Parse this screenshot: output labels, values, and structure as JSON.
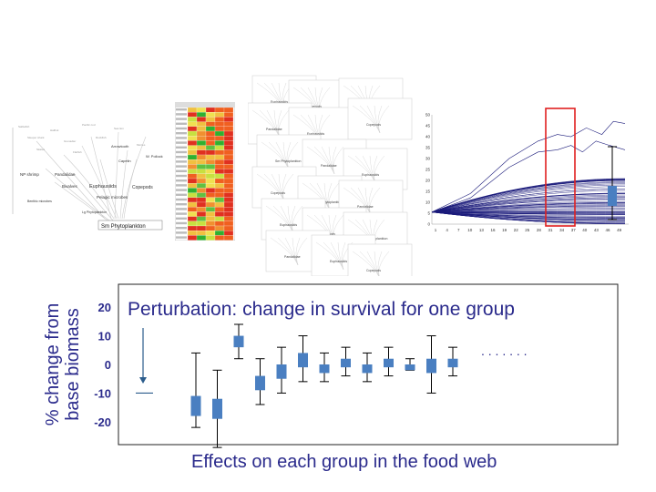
{
  "top_row": {
    "foodweb": {
      "labels": [
        "NP shrimp",
        "Pandalidae",
        "Euphausiids",
        "Copepods",
        "Bivalves",
        "Pelagic microbes",
        "Benthic microbes",
        "Lg Phytoplankton",
        "Sm Phytoplankton",
        "Arrowtooth",
        "Capelin",
        "W. Pollock"
      ]
    },
    "collage": {
      "labels": [
        "Euphausiids",
        "Copepods",
        "Sm Phytoplankton",
        "Pandalidae"
      ]
    },
    "line_chart": {
      "y_ticks": [
        "0",
        "5",
        "10",
        "15",
        "20",
        "25",
        "30",
        "35",
        "40",
        "45",
        "50"
      ],
      "x_ticks": [
        "1",
        "4",
        "7",
        "10",
        "13",
        "16",
        "19",
        "22",
        "25",
        "28",
        "31",
        "34",
        "37",
        "40",
        "43",
        "46",
        "49"
      ],
      "line_color": "#1a1a7a",
      "highlight_color": "#e02020"
    }
  },
  "chart_data": {
    "type": "boxplot",
    "title": "Perturbation: change in survival for one group",
    "xlabel": "Effects on each group in the food web",
    "ylabel_line1": "% change from",
    "ylabel_line2": "base biomass",
    "ylim": [
      -28,
      28
    ],
    "y_ticks": [
      {
        "value": 20,
        "label": "20"
      },
      {
        "value": 10,
        "label": "10"
      },
      {
        "value": 0,
        "label": "0"
      },
      {
        "value": -10,
        "label": "-10"
      },
      {
        "value": -20,
        "label": "-20"
      }
    ],
    "perturbation_marker": {
      "value": -10
    },
    "ellipsis": ". . . . . . .",
    "box_color": "#4a7fc1",
    "series": [
      {
        "min": -22,
        "q1": -18,
        "q3": -11,
        "max": 4
      },
      {
        "min": -29,
        "q1": -19,
        "q3": -12,
        "max": -2
      },
      {
        "min": 2,
        "q1": 6,
        "q3": 10,
        "max": 14
      },
      {
        "min": -14,
        "q1": -9,
        "q3": -4,
        "max": 2
      },
      {
        "min": -10,
        "q1": -5,
        "q3": 0,
        "max": 6
      },
      {
        "min": -6,
        "q1": -1,
        "q3": 4,
        "max": 10
      },
      {
        "min": -6,
        "q1": -3,
        "q3": 0,
        "max": 4
      },
      {
        "min": -4,
        "q1": -1,
        "q3": 2,
        "max": 6
      },
      {
        "min": -6,
        "q1": -3,
        "q3": 0,
        "max": 4
      },
      {
        "min": -4,
        "q1": -1,
        "q3": 2,
        "max": 6
      },
      {
        "min": -2,
        "q1": -2,
        "q3": 0,
        "max": 2
      },
      {
        "min": -10,
        "q1": -3,
        "q3": 2,
        "max": 10
      },
      {
        "min": -4,
        "q1": -1,
        "q3": 2,
        "max": 6
      }
    ]
  }
}
